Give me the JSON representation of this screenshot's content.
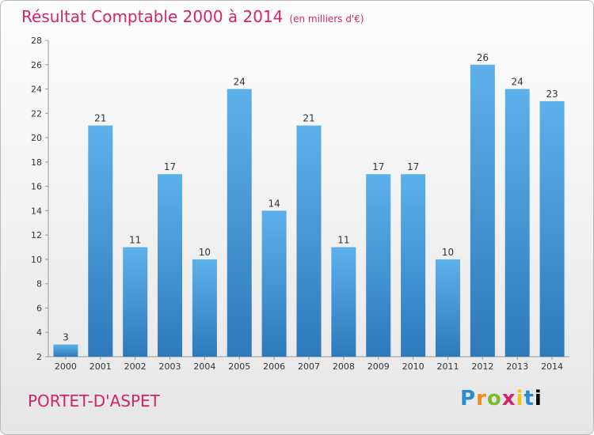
{
  "header": {
    "title": "Résultat Comptable 2000 à 2014",
    "subtitle": "(en milliers d'€)"
  },
  "footer": {
    "commune": "PORTET-D'ASPET",
    "brand": "Proxiti"
  },
  "chart_data": {
    "type": "bar",
    "title": "Résultat Comptable 2000 à 2014",
    "subtitle": "(en milliers d'€)",
    "categories": [
      "2000",
      "2001",
      "2002",
      "2003",
      "2004",
      "2005",
      "2006",
      "2007",
      "2008",
      "2009",
      "2010",
      "2011",
      "2012",
      "2013",
      "2014"
    ],
    "values": [
      3,
      21,
      11,
      17,
      10,
      24,
      14,
      21,
      11,
      17,
      17,
      10,
      26,
      24,
      23
    ],
    "ylim": [
      2,
      28
    ],
    "yticks": [
      2,
      4,
      6,
      8,
      10,
      12,
      14,
      16,
      18,
      20,
      22,
      24,
      26,
      28
    ],
    "grid": false,
    "bar_color": "#3d8fd6",
    "title_color": "#d3246a"
  }
}
